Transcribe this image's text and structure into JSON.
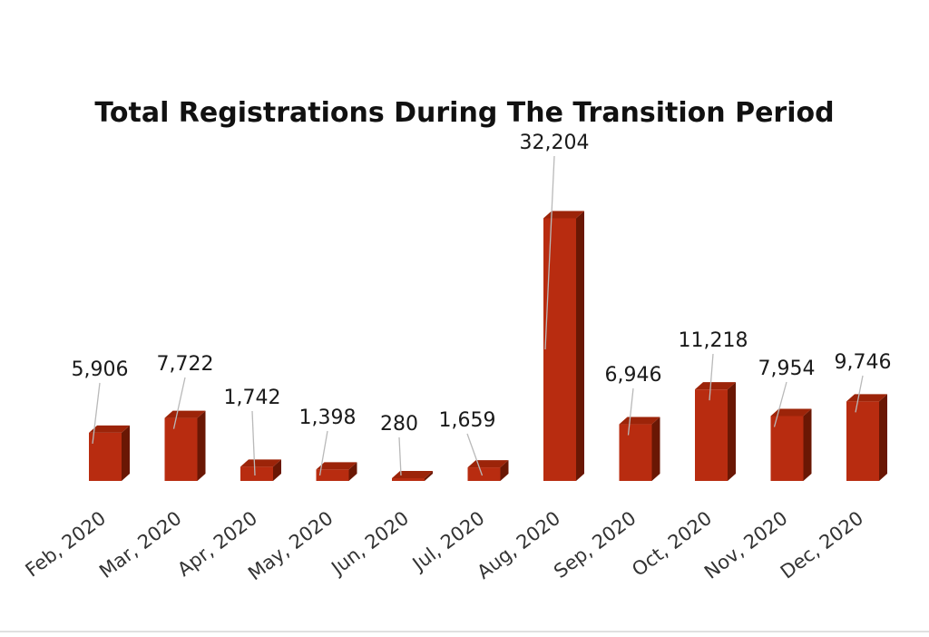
{
  "chart_data": {
    "type": "bar",
    "title": "Total Registrations During The Transition Period",
    "xlabel": "",
    "ylabel": "",
    "categories": [
      "Feb, 2020",
      "Mar, 2020",
      "Apr, 2020",
      "May, 2020",
      "Jun, 2020",
      "Jul, 2020",
      "Aug, 2020",
      "Sep, 2020",
      "Oct, 2020",
      "Nov, 2020",
      "Dec, 2020"
    ],
    "series": [
      {
        "values": [
          5906,
          7722,
          1742,
          1398,
          280,
          1659,
          32204,
          6946,
          11218,
          7954,
          9746
        ],
        "labels": [
          "5,906",
          "7,722",
          "1,742",
          "1,398",
          "280",
          "1,659",
          "32,204",
          "6,946",
          "11,218",
          "7,954",
          "9,746"
        ]
      }
    ],
    "ylim": [
      0,
      40000
    ],
    "grid": false,
    "legend": "none",
    "style": "3d-column",
    "colors": {
      "bar_front": "#b82c10",
      "bar_top": "#9c2409",
      "bar_side": "#6a1704"
    }
  }
}
